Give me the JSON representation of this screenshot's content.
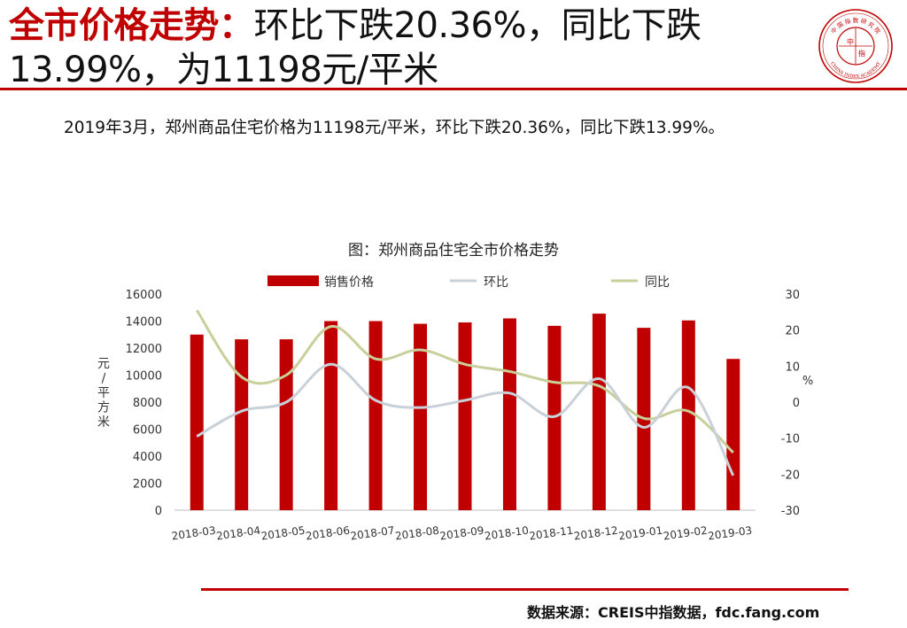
{
  "slide": {
    "title_highlight": "全市价格走势：",
    "title_rest": "环比下跌20.36%，同比下跌13.99%，为11198元/平米",
    "summary": "2019年3月，郑州商品住宅价格为11198元/平米，环比下跌20.36%，同比下跌13.99%。",
    "source": "数据来源：CREIS中指数据，fdc.fang.com"
  },
  "logo": {
    "top_text": "中 国 指 数 研 究 院",
    "bottom_text": "CHINA INDEX ACADEMY",
    "center_text": "中",
    "center_text2": "指"
  },
  "colors": {
    "accent": "#c00000",
    "bar": "#c00000",
    "mom_line": "#c8d0d8",
    "yoy_line": "#c9cf9a"
  },
  "chart_data": {
    "type": "bar",
    "title": "图：郑州商品住宅全市价格走势",
    "categories": [
      "2018-03",
      "2018-04",
      "2018-05",
      "2018-06",
      "2018-07",
      "2018-08",
      "2018-09",
      "2018-10",
      "2018-11",
      "2018-12",
      "2019-01",
      "2019-02",
      "2019-03"
    ],
    "ylabel": "元/平方米",
    "y2label": "%",
    "ylim": [
      0,
      16000
    ],
    "y2lim": [
      -30,
      30
    ],
    "yticks": [
      "0",
      "2000",
      "4000",
      "6000",
      "8000",
      "10000",
      "12000",
      "14000",
      "16000"
    ],
    "y2ticks": [
      "-30",
      "-20",
      "-10",
      "0",
      "10",
      "20",
      "30"
    ],
    "legend_position": "top",
    "grid": false,
    "series": [
      {
        "name": "销售价格",
        "type": "bar",
        "axis": "left",
        "values": [
          13000,
          12650,
          12650,
          14000,
          14000,
          13800,
          13900,
          14200,
          13650,
          14550,
          13500,
          14050,
          11198
        ]
      },
      {
        "name": "环比",
        "type": "line",
        "axis": "right",
        "values": [
          -9.5,
          -2.5,
          0,
          10.5,
          0.5,
          -1.5,
          0.5,
          2.5,
          -4,
          6.5,
          -7,
          4,
          -20.36
        ]
      },
      {
        "name": "同比",
        "type": "line",
        "axis": "right",
        "values": [
          25.5,
          7,
          7.5,
          21,
          12,
          14.5,
          10.5,
          8.5,
          5.5,
          4.5,
          -4.5,
          -2.5,
          -13.99
        ]
      }
    ]
  }
}
